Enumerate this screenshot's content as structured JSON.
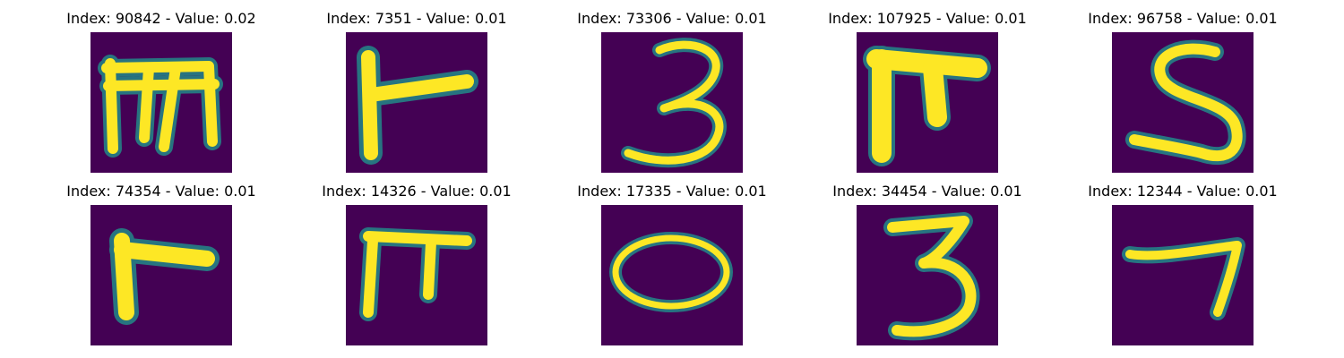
{
  "background_color": "#440154",
  "stroke_color": "#fde725",
  "edge_colors": [
    "#20908d",
    "#3b528b",
    "#5ec962"
  ],
  "samples": [
    {
      "title": "Index: 90842 - Value: 0.02",
      "glyph": "m-shape"
    },
    {
      "title": "Index: 7351 - Value: 0.01",
      "glyph": "stick-shape"
    },
    {
      "title": "Index: 73306 - Value: 0.01",
      "glyph": "digit-3"
    },
    {
      "title": "Index: 107925 - Value: 0.01",
      "glyph": "pi-shape"
    },
    {
      "title": "Index: 96758 - Value: 0.01",
      "glyph": "digit-5"
    },
    {
      "title": "Index: 74354 - Value: 0.01",
      "glyph": "r-shape"
    },
    {
      "title": "Index: 14326 - Value: 0.01",
      "glyph": "pi-shape"
    },
    {
      "title": "Index: 17335 - Value: 0.01",
      "glyph": "digit-0"
    },
    {
      "title": "Index: 34454 - Value: 0.01",
      "glyph": "digit-3"
    },
    {
      "title": "Index: 12344 - Value: 0.01",
      "glyph": "digit-7"
    }
  ]
}
